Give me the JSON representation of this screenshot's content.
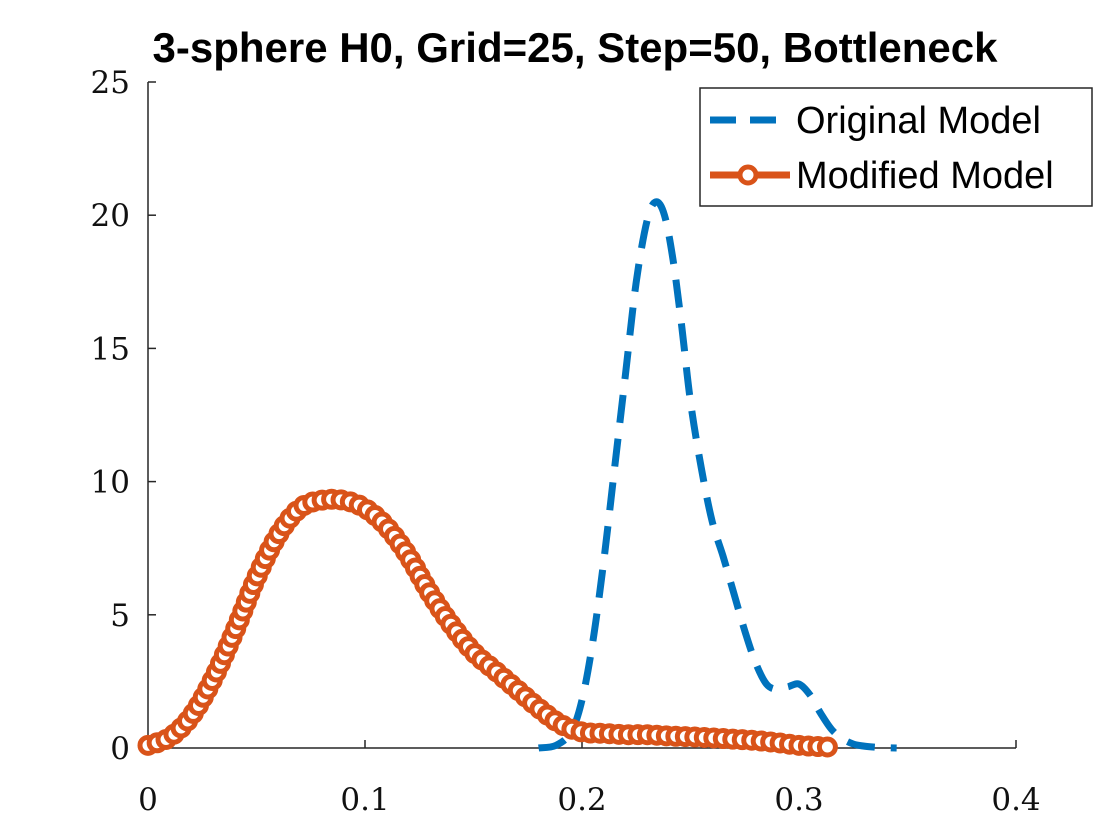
{
  "chart_data": {
    "type": "line",
    "title": "3-sphere H0, Grid=25, Step=50, Bottleneck",
    "xlabel": "",
    "ylabel": "",
    "xlim": [
      0,
      0.4
    ],
    "ylim": [
      0,
      25
    ],
    "xticks": [
      "0",
      "0.1",
      "0.2",
      "0.3",
      "0.4"
    ],
    "yticks": [
      "0",
      "5",
      "10",
      "15",
      "20",
      "25"
    ],
    "grid": false,
    "legend_position": "top-right",
    "series": [
      {
        "name": "Original Model",
        "color": "#0072BD",
        "style": "dashed",
        "x": [
          0.18,
          0.188,
          0.195,
          0.2,
          0.205,
          0.21,
          0.215,
          0.22,
          0.225,
          0.23,
          0.234,
          0.238,
          0.242,
          0.246,
          0.25,
          0.255,
          0.26,
          0.265,
          0.27,
          0.275,
          0.28,
          0.285,
          0.29,
          0.295,
          0.3,
          0.305,
          0.31,
          0.315,
          0.32,
          0.325,
          0.33,
          0.335,
          0.34,
          0.345
        ],
        "y": [
          0.0,
          0.1,
          0.6,
          1.8,
          4.0,
          7.0,
          10.5,
          14.0,
          17.5,
          19.8,
          20.5,
          20.0,
          18.3,
          15.8,
          13.0,
          10.5,
          8.5,
          7.2,
          5.8,
          4.4,
          3.2,
          2.4,
          2.2,
          2.3,
          2.4,
          2.0,
          1.3,
          0.7,
          0.35,
          0.15,
          0.07,
          0.03,
          0.01,
          0.0
        ]
      },
      {
        "name": "Modified Model",
        "color": "#D95319",
        "style": "solid-circles",
        "x": [
          0.0,
          0.01,
          0.02,
          0.03,
          0.04,
          0.05,
          0.06,
          0.07,
          0.08,
          0.09,
          0.1,
          0.11,
          0.12,
          0.13,
          0.14,
          0.15,
          0.16,
          0.17,
          0.18,
          0.19,
          0.2,
          0.21,
          0.22,
          0.23,
          0.24,
          0.25,
          0.26,
          0.27,
          0.28,
          0.29,
          0.3,
          0.31,
          0.315
        ],
        "y": [
          0.1,
          0.4,
          1.2,
          2.6,
          4.4,
          6.4,
          8.0,
          9.0,
          9.3,
          9.3,
          9.0,
          8.3,
          7.2,
          5.8,
          4.6,
          3.6,
          2.9,
          2.2,
          1.5,
          0.9,
          0.6,
          0.55,
          0.5,
          0.5,
          0.45,
          0.42,
          0.38,
          0.33,
          0.28,
          0.2,
          0.1,
          0.05,
          0.03
        ]
      }
    ]
  }
}
